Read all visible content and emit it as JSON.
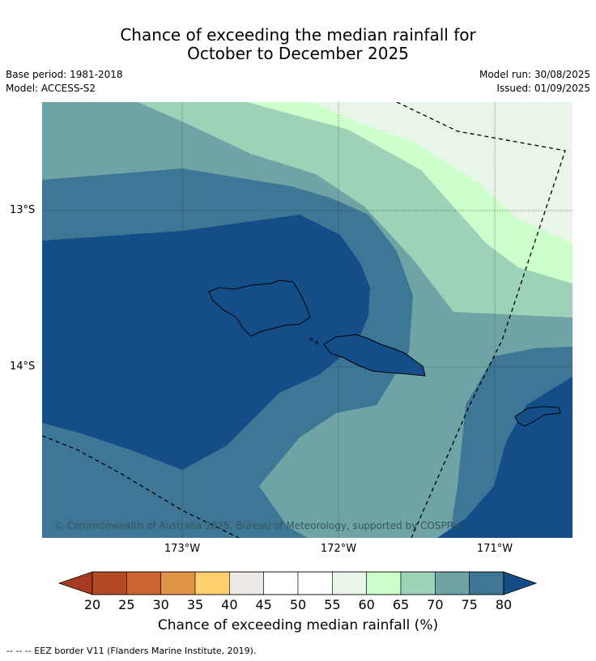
{
  "header": {
    "title_line1": "Chance of exceeding the median rainfall for",
    "title_line2": "October to December 2025",
    "base_period": "Base period: 1981-2018",
    "model": "Model: ACCESS-S2",
    "model_run": "Model run: 30/08/2025",
    "issued": "Issued: 01/09/2025"
  },
  "map": {
    "lat_labels": [
      "13°S",
      "14°S"
    ],
    "lon_labels": [
      "173°W",
      "172°W",
      "171°W"
    ],
    "copyright": "© Commonwealth of Australia 2025, Bureau of Meteorology, supported by COSPPac",
    "colors": {
      "c55_60": "#e9f5e9",
      "c60_65": "#ccffcc",
      "c65_70": "#9dd1b8",
      "c70_75": "#6ea4a5",
      "c75_80": "#3e7696",
      "c80": "#134e89"
    }
  },
  "colorbar": {
    "ticks": [
      "20",
      "25",
      "30",
      "35",
      "40",
      "45",
      "50",
      "55",
      "60",
      "65",
      "70",
      "75",
      "80"
    ],
    "colors": [
      "#a73a20",
      "#b54a27",
      "#cd6432",
      "#e09445",
      "#fecf6a",
      "#ece8e5",
      "#ffffff",
      "#ffffff",
      "#e9f5e9",
      "#ccffcc",
      "#9dd1b8",
      "#6ea4a5",
      "#3e7696",
      "#134e89"
    ],
    "label": "Chance of exceeding median rainfall (%)"
  },
  "footer": {
    "eez_note": "--  --  -- EEZ border V11 (Flanders Marine Institute, 2019)."
  }
}
